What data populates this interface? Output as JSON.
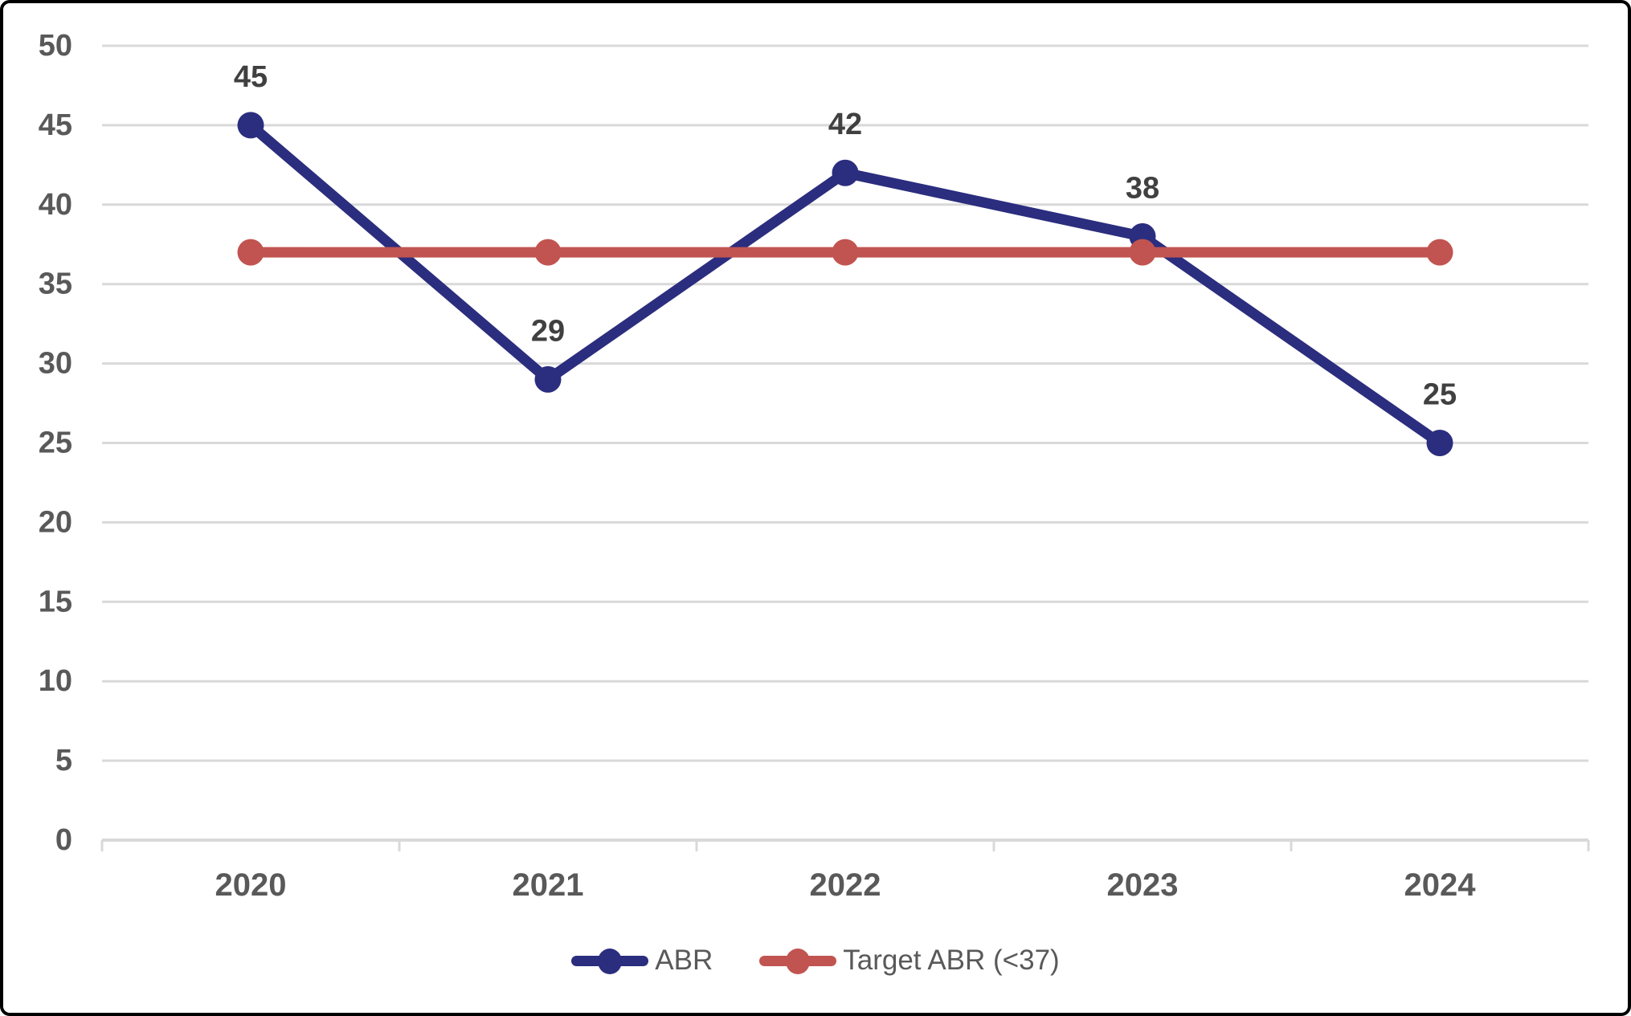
{
  "chart_data": {
    "type": "line",
    "categories": [
      "2020",
      "2021",
      "2022",
      "2023",
      "2024"
    ],
    "series": [
      {
        "id": "abr",
        "name": "ABR",
        "values": [
          45,
          29,
          42,
          38,
          25
        ],
        "color": "#2B2D7E",
        "data_labels": true
      },
      {
        "id": "target-abr",
        "name": "Target ABR (<37)",
        "values": [
          37,
          37,
          37,
          37,
          37
        ],
        "color": "#C15450",
        "data_labels": false
      }
    ],
    "title": "",
    "xlabel": "",
    "ylabel": "",
    "ylim": [
      0,
      50
    ],
    "y_ticks": [
      0,
      5,
      10,
      15,
      20,
      25,
      30,
      35,
      40,
      45,
      50
    ],
    "grid": "horizontal",
    "legend_position": "bottom"
  },
  "colors": {
    "gridline": "#D9D9D9",
    "axis_line": "#D9D9D9",
    "axis_text": "#595959",
    "data_label_text": "#404040",
    "legend_text": "#595959",
    "frame_border": "#000000",
    "background": "#FFFFFF"
  }
}
